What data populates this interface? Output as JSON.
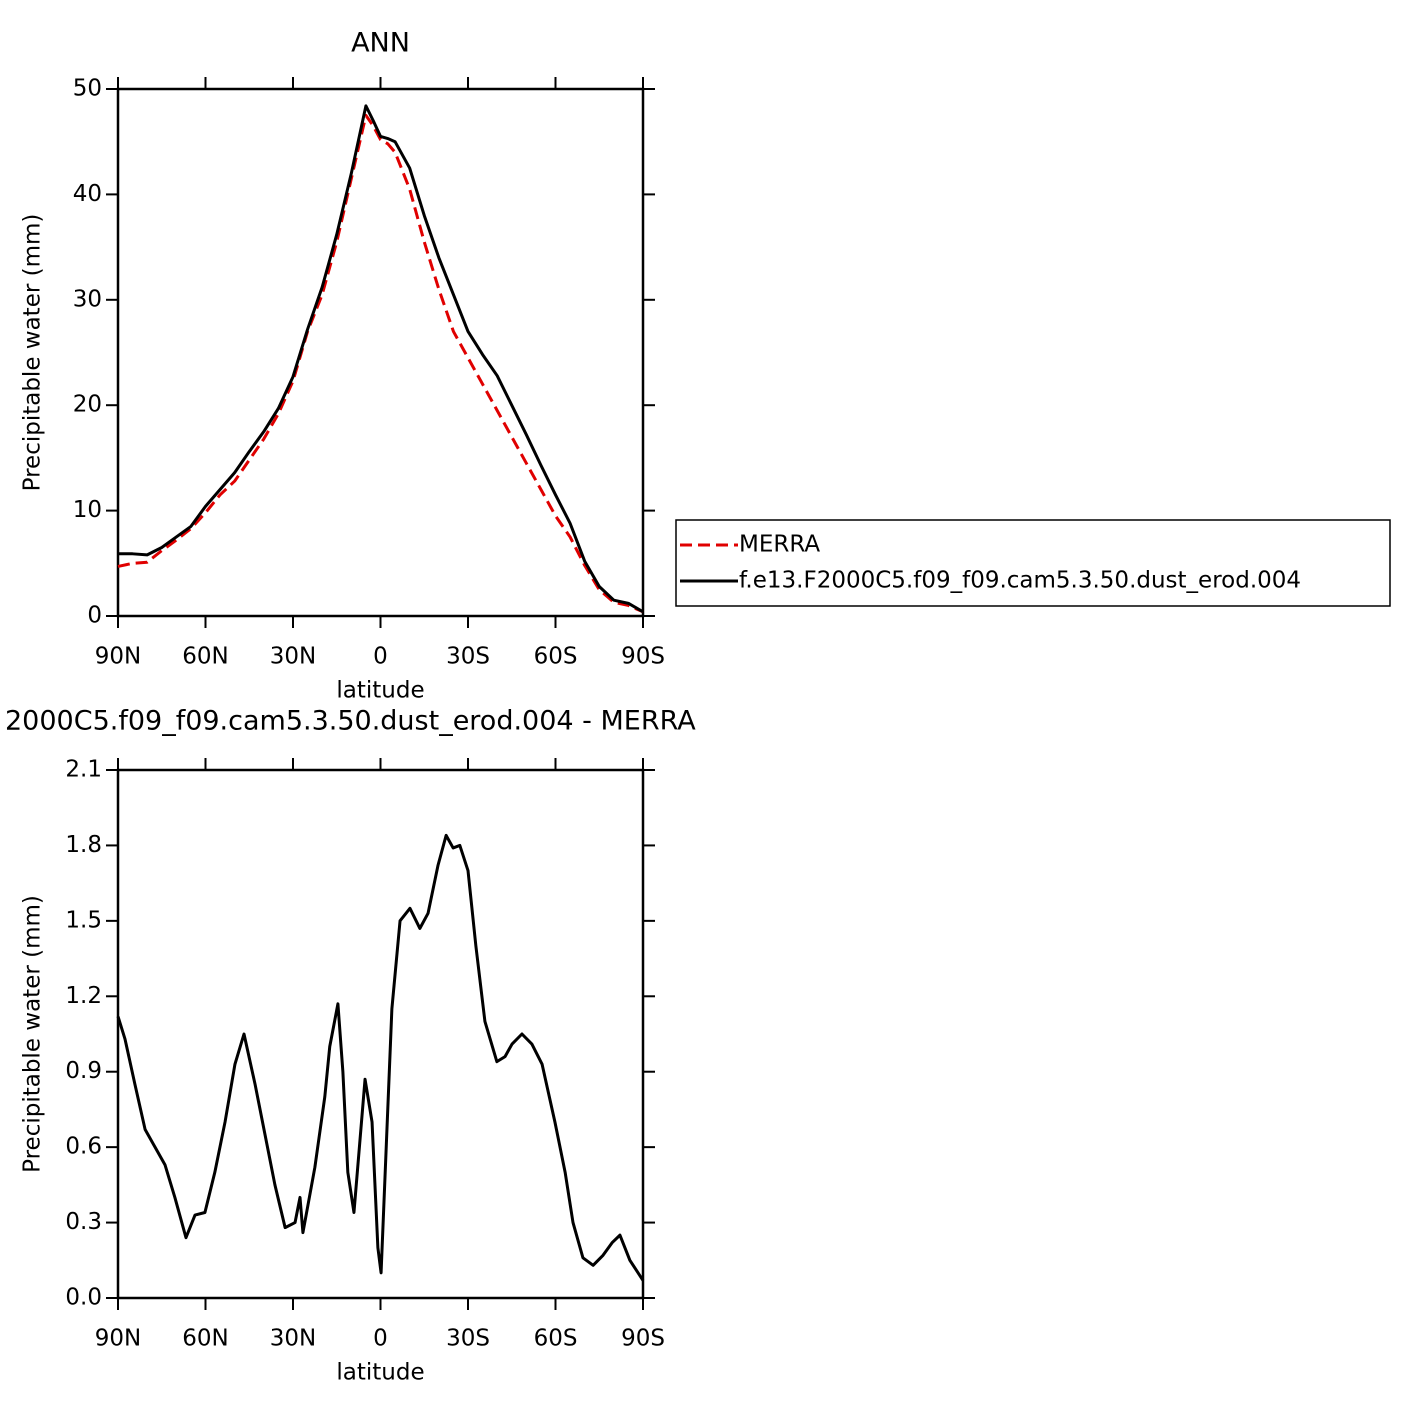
{
  "chart_data": [
    {
      "type": "line",
      "title": "ANN",
      "xlabel": "latitude",
      "ylabel": "Precipitable water (mm)",
      "x": [
        90,
        85,
        80,
        75,
        70,
        65,
        60,
        55,
        50,
        45,
        40,
        35,
        30,
        25,
        20,
        15,
        10,
        5,
        2.5,
        0,
        -2.5,
        -5,
        -10,
        -15,
        -20,
        -25,
        -30,
        -35,
        -40,
        -45,
        -50,
        -55,
        -60,
        -65,
        -70,
        -75,
        -80,
        -85,
        -90
      ],
      "series": [
        {
          "name": "MERRA",
          "color": "#e00000",
          "style": "dashed",
          "values": [
            4.7,
            5.0,
            5.1,
            6.2,
            7.2,
            8.3,
            9.8,
            11.5,
            12.8,
            14.8,
            16.8,
            19.2,
            22.3,
            27,
            30.5,
            35.5,
            41.5,
            47.5,
            46.5,
            45.2,
            44.8,
            44,
            40.5,
            35.5,
            31,
            27,
            24.5,
            22,
            19.5,
            17,
            14.5,
            12,
            9.5,
            7.5,
            4.8,
            2.5,
            1.3,
            1.0,
            0.4
          ]
        },
        {
          "name": "f.e13.F2000C5.f09_f09.cam5.3.50.dust_erod.004",
          "color": "#000000",
          "style": "solid",
          "values": [
            5.9,
            5.9,
            5.8,
            6.5,
            7.5,
            8.5,
            10.4,
            12.0,
            13.6,
            15.6,
            17.5,
            19.7,
            22.7,
            27.2,
            31.2,
            36.2,
            42.0,
            48.4,
            47.0,
            45.5,
            45.3,
            45.0,
            42.5,
            38.0,
            34.0,
            30.5,
            27.0,
            24.8,
            22.8,
            20.0,
            17.2,
            14.3,
            11.5,
            8.8,
            5.2,
            2.8,
            1.5,
            1.2,
            0.4
          ]
        }
      ],
      "xlim": [
        90,
        -90
      ],
      "xticks": [
        {
          "value": 90,
          "label": "90N"
        },
        {
          "value": 60,
          "label": "60N"
        },
        {
          "value": 30,
          "label": "30N"
        },
        0,
        {
          "value": -30,
          "label": "30S"
        },
        {
          "value": -60,
          "label": "60S"
        },
        {
          "value": -90,
          "label": "90S"
        }
      ],
      "ylim": [
        0,
        50
      ],
      "yticks": [
        0,
        10,
        20,
        30,
        40,
        50
      ],
      "legend": "right"
    },
    {
      "type": "line",
      "title": "2000C5.f09_f09.cam5.3.50.dust_erod.004 - MERRA",
      "xlabel": "latitude",
      "ylabel": "Precipitable water (mm)",
      "x": [
        90,
        87.6,
        84.2,
        80.7,
        77.3,
        73.9,
        70.5,
        66.7,
        63.6,
        60.2,
        56.8,
        53.3,
        49.9,
        46.8,
        43,
        39.6,
        36.2,
        32.7,
        29.3,
        27.6,
        26.6,
        22.5,
        19.1,
        17.4,
        14.6,
        12.9,
        11.2,
        9.1,
        5.3,
        2.9,
        0.9,
        -0.2,
        -3.9,
        -6.7,
        -10.1,
        -13.5,
        -16.3,
        -19.7,
        -22.5,
        -24.9,
        -27.2,
        -30,
        -32.7,
        -35.8,
        -39.9,
        -42.7,
        -45.1,
        -48.5,
        -51.9,
        -55.4,
        -59.8,
        -63.3,
        -66,
        -69.4,
        -72.9,
        -76.3,
        -79.4,
        -82.1,
        -85.5,
        -90
      ],
      "series": [
        {
          "name": null,
          "color": "#000000",
          "style": "solid",
          "values": [
            1.12,
            1.03,
            0.85,
            0.67,
            0.6,
            0.53,
            0.4,
            0.24,
            0.33,
            0.34,
            0.5,
            0.7,
            0.93,
            1.05,
            0.85,
            0.65,
            0.45,
            0.28,
            0.3,
            0.4,
            0.26,
            0.52,
            0.8,
            1.0,
            1.17,
            0.9,
            0.5,
            0.34,
            0.87,
            0.7,
            0.2,
            0.1,
            1.15,
            1.5,
            1.55,
            1.47,
            1.53,
            1.72,
            1.84,
            1.79,
            1.8,
            1.7,
            1.4,
            1.1,
            0.94,
            0.96,
            1.01,
            1.05,
            1.01,
            0.93,
            0.7,
            0.5,
            0.3,
            0.16,
            0.13,
            0.17,
            0.22,
            0.25,
            0.15,
            0.07
          ]
        }
      ],
      "xlim": [
        90,
        -90
      ],
      "xticks": [
        {
          "value": 90,
          "label": "90N"
        },
        {
          "value": 60,
          "label": "60N"
        },
        {
          "value": 30,
          "label": "30N"
        },
        0,
        {
          "value": -30,
          "label": "30S"
        },
        {
          "value": -60,
          "label": "60S"
        },
        {
          "value": -90,
          "label": "90S"
        }
      ],
      "ylim": [
        0,
        2.1
      ],
      "yticks": [
        {
          "value": 0,
          "label": "0.0"
        },
        0.3,
        0.6,
        0.9,
        1.2,
        1.5,
        1.8,
        2.1
      ]
    }
  ]
}
